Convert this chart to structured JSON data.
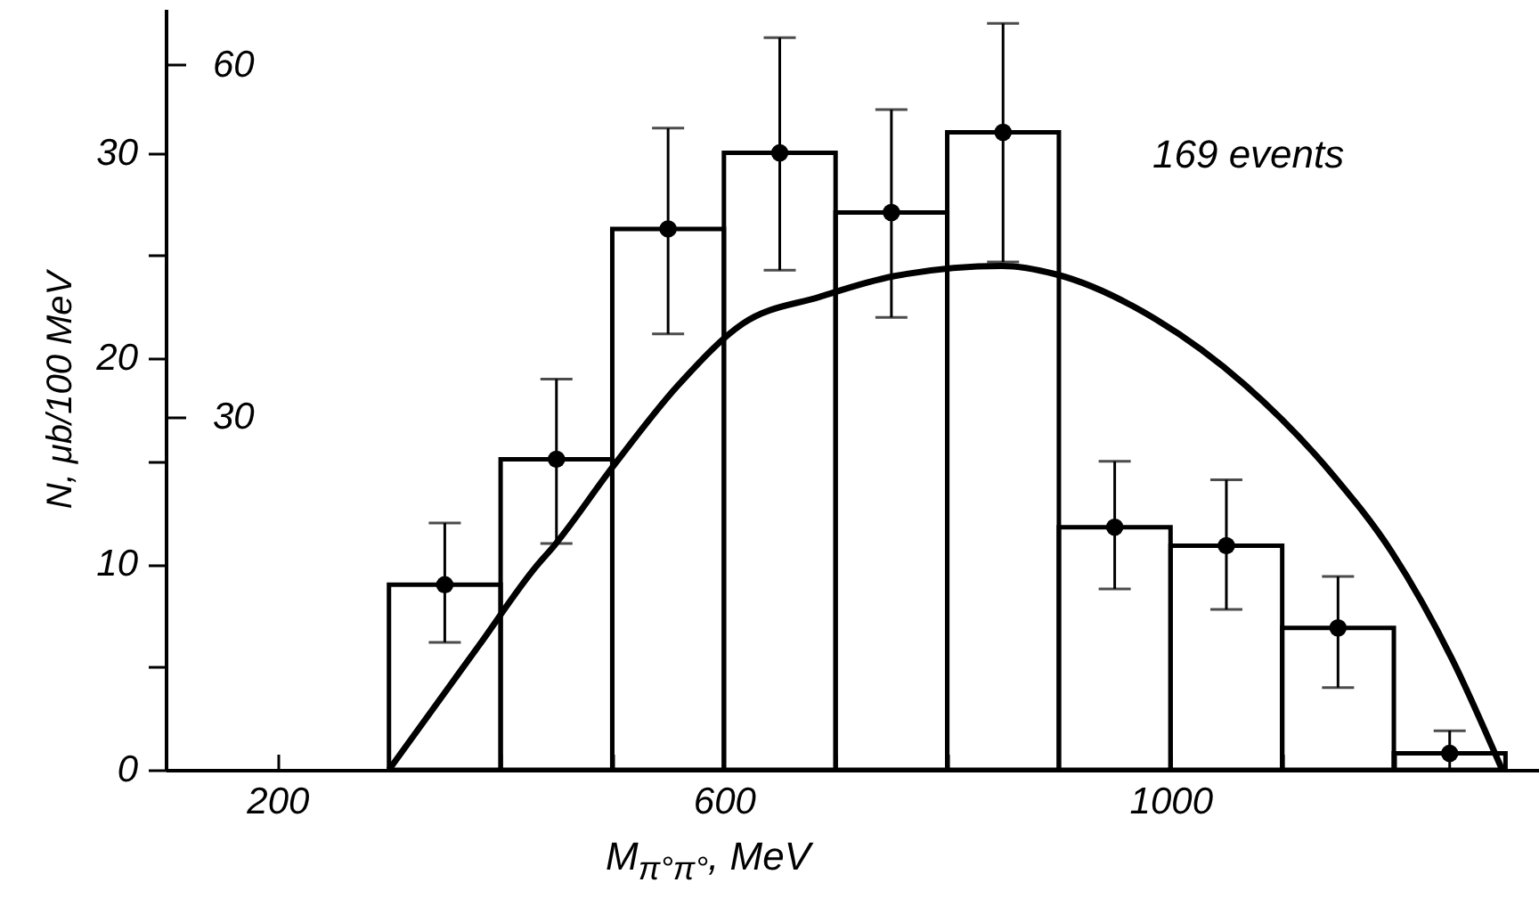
{
  "chart_data": {
    "type": "histogram",
    "xlabel": "M$_{π°π°}$, MeV",
    "ylabel": "N, μb/100 MeV",
    "annotations": [
      "169 events"
    ],
    "bins": [
      300,
      400,
      500,
      600,
      700,
      800,
      900,
      1000,
      1100,
      1200,
      1300
    ],
    "marker": "circle",
    "series": [
      {
        "color": "#000000",
        "values": [
          9.0,
          15.1,
          26.3,
          30.0,
          27.1,
          31.0,
          11.8,
          10.9,
          6.9,
          0.8
        ]
      },
      {
        "type": "scatter",
        "color": "#000000",
        "x": [
          350,
          450,
          550,
          650,
          750,
          850,
          950,
          1050,
          1150,
          1250
        ],
        "values": [
          9.0,
          15.1,
          26.3,
          30.0,
          27.1,
          31.0,
          11.8,
          10.9,
          6.9,
          0.8
        ],
        "errors": [
          [
            6.2,
            12.0
          ],
          [
            11.0,
            19.0
          ],
          [
            21.2,
            31.2
          ],
          [
            24.3,
            35.6
          ],
          [
            22.0,
            32.1
          ],
          [
            24.7,
            36.3
          ],
          [
            8.8,
            15.0
          ],
          [
            7.8,
            14.1
          ],
          [
            4.0,
            9.4
          ],
          [
            0,
            1.9
          ]
        ]
      },
      {
        "type": "line",
        "color": "#000000",
        "marker": "none",
        "x": [
          300,
          380,
          432,
          448,
          500,
          559,
          617,
          686,
          752,
          849,
          897,
          987,
          1067,
          1146,
          1198,
          1252,
          1297
        ],
        "values": [
          0,
          6.0,
          9.9,
          10.9,
          14.7,
          18.7,
          21.7,
          23.0,
          24.0,
          24.5,
          24.1,
          21.9,
          18.7,
          14.3,
          10.6,
          5.4,
          0
        ]
      }
    ],
    "xlim": [
      100,
      1330
    ],
    "xticks": [
      200,
      {
        "value": 300,
        "label": null
      },
      {
        "value": 400,
        "label": null
      },
      {
        "value": 500,
        "label": null
      },
      600,
      {
        "value": 700,
        "label": null
      },
      {
        "value": 800,
        "label": null
      },
      {
        "value": 900,
        "label": null
      },
      1000,
      {
        "value": 1100,
        "label": null
      },
      {
        "value": 1200,
        "label": null
      }
    ],
    "ylim": [
      0,
      37
    ],
    "yticks": [
      0,
      {
        "value": 5,
        "label": null
      },
      10,
      {
        "value": 15,
        "label": null
      },
      20,
      {
        "value": 25,
        "label": null
      },
      30
    ],
    "y2lim": [
      0,
      64.75
    ],
    "y2ticks": [
      30,
      60
    ],
    "grid": false
  }
}
